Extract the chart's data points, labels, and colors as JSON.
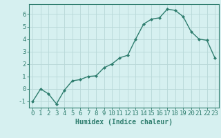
{
  "x": [
    0,
    1,
    2,
    3,
    4,
    5,
    6,
    7,
    8,
    9,
    10,
    11,
    12,
    13,
    14,
    15,
    16,
    17,
    18,
    19,
    20,
    21,
    22,
    23
  ],
  "y": [
    -1.0,
    0.0,
    -0.4,
    -1.2,
    -0.1,
    0.65,
    0.75,
    1.0,
    1.05,
    1.7,
    2.0,
    2.5,
    2.7,
    4.0,
    5.2,
    5.6,
    5.7,
    6.4,
    6.3,
    5.8,
    4.6,
    4.0,
    3.9,
    2.5
  ],
  "line_color": "#2e7d6e",
  "marker": "D",
  "marker_size": 2.0,
  "bg_color": "#d6f0f0",
  "grid_major_color": "#c0dede",
  "grid_minor_color": "#d0e8e8",
  "xlabel": "Humidex (Indice chaleur)",
  "ylim": [
    -1.5,
    6.8
  ],
  "xlim": [
    -0.5,
    23.5
  ],
  "yticks": [
    -1,
    0,
    1,
    2,
    3,
    4,
    5,
    6
  ],
  "xticks": [
    0,
    1,
    2,
    3,
    4,
    5,
    6,
    7,
    8,
    9,
    10,
    11,
    12,
    13,
    14,
    15,
    16,
    17,
    18,
    19,
    20,
    21,
    22,
    23
  ],
  "xlabel_fontsize": 7,
  "tick_fontsize": 6.5,
  "line_width": 1.0
}
